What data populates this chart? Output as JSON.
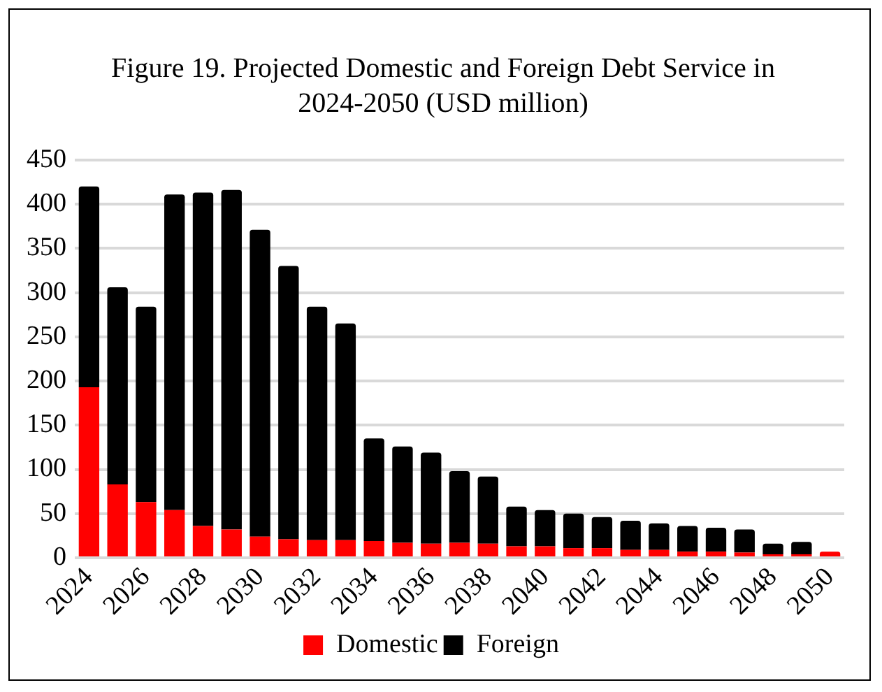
{
  "chart_data": {
    "type": "bar",
    "title": "Figure 19. Projected Domestic and Foreign Debt Service in 2024-2050 (USD million)",
    "categories": [
      "2024",
      null,
      "2026",
      null,
      "2028",
      null,
      "2030",
      null,
      "2032",
      null,
      "2034",
      null,
      "2036",
      null,
      "2038",
      null,
      "2040",
      null,
      "2042",
      null,
      "2044",
      null,
      "2046",
      null,
      "2048",
      null,
      "2050"
    ],
    "stacked": true,
    "series": [
      {
        "name": "Domestic",
        "color": "#ff0000",
        "values": [
          193,
          83,
          63,
          54,
          36,
          32,
          24,
          21,
          20,
          20,
          19,
          17,
          16,
          17,
          16,
          13,
          13,
          11,
          11,
          9,
          9,
          7,
          7,
          6,
          4,
          4,
          7
        ]
      },
      {
        "name": "Foreign",
        "color": "#000000",
        "values": [
          227,
          223,
          221,
          357,
          377,
          384,
          347,
          309,
          264,
          245,
          116,
          109,
          103,
          81,
          76,
          45,
          41,
          39,
          35,
          33,
          30,
          29,
          27,
          26,
          12,
          14,
          0
        ]
      }
    ],
    "ylim": [
      0,
      450
    ],
    "yticks": [
      0,
      50,
      100,
      150,
      200,
      250,
      300,
      350,
      400,
      450
    ],
    "grid": "y",
    "legend": "bottom"
  }
}
